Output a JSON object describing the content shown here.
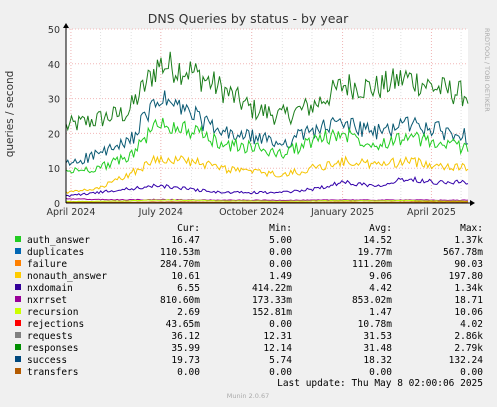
{
  "chart_data": {
    "type": "line",
    "title": "DNS Queries by status - by year",
    "ylabel": "queries / second",
    "side_label": "RRDTOOL / TOBI OETIKER",
    "ylim": [
      0,
      50
    ],
    "yticks": [
      "0",
      "10",
      "20",
      "30",
      "40",
      "50"
    ],
    "x_range": [
      "2024-03-27",
      "2025-05-08"
    ],
    "xticks": [
      {
        "label": "April 2024",
        "date": "2024-04-01"
      },
      {
        "label": "July 2024",
        "date": "2024-07-01"
      },
      {
        "label": "October 2024",
        "date": "2024-10-01"
      },
      {
        "label": "January 2025",
        "date": "2025-01-01"
      },
      {
        "label": "April 2025",
        "date": "2025-04-01"
      }
    ],
    "grid": true,
    "legend_placement": "bottom",
    "series": [
      {
        "name": "responses",
        "color": "#1b7d1b",
        "values": [
          22,
          24,
          26,
          40,
          38,
          33,
          27,
          25,
          28,
          34,
          33,
          36,
          33,
          31
        ]
      },
      {
        "name": "success",
        "color": "#0a5a73",
        "values": [
          11,
          14,
          17,
          30,
          26,
          20,
          19,
          17,
          21,
          23,
          20,
          23,
          21,
          19
        ]
      },
      {
        "name": "auth_answer",
        "color": "#22cc22",
        "values": [
          9,
          10,
          13,
          23,
          21,
          17,
          16,
          14,
          18,
          20,
          17,
          19,
          17,
          16
        ]
      },
      {
        "name": "nonauth_answer",
        "color": "#f5c400",
        "values": [
          3,
          4,
          8,
          13,
          12,
          10,
          9,
          8,
          10,
          12,
          11,
          12,
          11,
          10
        ]
      },
      {
        "name": "nxdomain",
        "color": "#3300aa",
        "values": [
          2,
          3,
          4,
          5,
          4,
          3,
          3,
          3,
          4,
          6,
          5,
          7,
          6,
          6
        ]
      },
      {
        "name": "nxrrset",
        "color": "#990099",
        "values": [
          1.2,
          1.0,
          0.9,
          1.0,
          0.9,
          0.8,
          0.8,
          0.8,
          0.8,
          0.9,
          0.8,
          0.9,
          0.8,
          0.8
        ]
      },
      {
        "name": "recursion",
        "color": "#c0ff00",
        "values": [
          0.4,
          0.5,
          0.6,
          0.9,
          0.8,
          0.6,
          0.6,
          0.5,
          0.6,
          0.7,
          0.6,
          0.7,
          0.6,
          0.5
        ]
      },
      {
        "name": "rejections",
        "color": "#cc0000",
        "values": [
          0.05,
          0.05,
          0.05,
          0.05,
          0.05,
          0.05,
          0.05,
          0.05,
          0.05,
          0.05,
          0.05,
          0.05,
          0.05,
          0.05
        ]
      },
      {
        "name": "failure",
        "color": "#cc6600",
        "values": [
          0.2,
          0.2,
          0.2,
          0.3,
          0.3,
          0.2,
          0.2,
          0.2,
          0.2,
          0.3,
          0.2,
          0.3,
          0.3,
          0.3
        ]
      }
    ],
    "legend": {
      "headers": [
        "Cur:",
        "Min:",
        "Avg:",
        "Max:"
      ],
      "rows": [
        {
          "name": "auth_answer",
          "color": "#22cc22",
          "cur": "16.47",
          "min": "5.00",
          "avg": "14.52",
          "max": "1.37k"
        },
        {
          "name": "duplicates",
          "color": "#0066b3",
          "cur": "110.53m",
          "min": "0.00",
          "avg": "19.77m",
          "max": "567.78m"
        },
        {
          "name": "failure",
          "color": "#ff8000",
          "cur": "284.70m",
          "min": "0.00",
          "avg": "111.20m",
          "max": "90.03"
        },
        {
          "name": "nonauth_answer",
          "color": "#ffcc00",
          "cur": "10.61",
          "min": "1.49",
          "avg": "9.06",
          "max": "197.80"
        },
        {
          "name": "nxdomain",
          "color": "#330099",
          "cur": "6.55",
          "min": "414.22m",
          "avg": "4.42",
          "max": "1.34k"
        },
        {
          "name": "nxrrset",
          "color": "#990099",
          "cur": "810.60m",
          "min": "173.33m",
          "avg": "853.02m",
          "max": "18.71"
        },
        {
          "name": "recursion",
          "color": "#ccff00",
          "cur": "2.69",
          "min": "152.81m",
          "avg": "1.47",
          "max": "10.06"
        },
        {
          "name": "rejections",
          "color": "#ff0000",
          "cur": "43.65m",
          "min": "0.00",
          "avg": "10.78m",
          "max": "4.02"
        },
        {
          "name": "requests",
          "color": "#808080",
          "cur": "36.12",
          "min": "12.31",
          "avg": "31.53",
          "max": "2.86k"
        },
        {
          "name": "responses",
          "color": "#008f00",
          "cur": "35.99",
          "min": "12.14",
          "avg": "31.48",
          "max": "2.79k"
        },
        {
          "name": "success",
          "color": "#00487d",
          "cur": "19.73",
          "min": "5.74",
          "avg": "18.32",
          "max": "132.24"
        },
        {
          "name": "transfers",
          "color": "#b35a00",
          "cur": "0.00",
          "min": "0.00",
          "avg": "0.00",
          "max": "0.00"
        }
      ]
    },
    "last_update": "Last update: Thu May  8 02:00:06 2025",
    "footer": "Munin 2.0.67"
  }
}
